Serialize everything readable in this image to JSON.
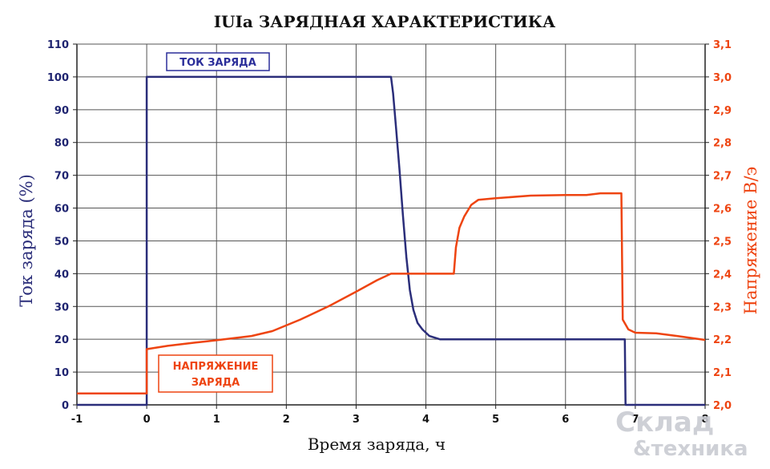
{
  "chart_data": {
    "type": "line",
    "title": "IUIa ЗАРЯДНАЯ ХАРАКТЕРИСТИКА",
    "xlabel": "Время заряда, ч",
    "ylabel_left": "Ток заряда (%)",
    "ylabel_right": "Напряжение В/э",
    "xlim": [
      -1,
      8
    ],
    "ylim_left": [
      0,
      110
    ],
    "ylim_right": [
      2.0,
      3.1
    ],
    "x_ticks": [
      "-1",
      "0",
      "1",
      "2",
      "3",
      "4",
      "5",
      "6",
      "7",
      "8"
    ],
    "y_left_ticks": [
      "0",
      "10",
      "20",
      "30",
      "40",
      "50",
      "60",
      "70",
      "80",
      "90",
      "100",
      "110"
    ],
    "y_right_ticks": [
      "2,0",
      "2,1",
      "2,2",
      "2,3",
      "2,4",
      "2,5",
      "2,6",
      "2,7",
      "2,8",
      "2,9",
      "3,0",
      "3,1"
    ],
    "grid": true,
    "series": [
      {
        "name": "ТОК ЗАРЯДА",
        "axis": "left",
        "color": "#2b2e7a",
        "points": [
          [
            -1,
            0
          ],
          [
            0,
            0
          ],
          [
            0,
            100
          ],
          [
            3.5,
            100
          ],
          [
            3.53,
            95
          ],
          [
            3.57,
            85
          ],
          [
            3.62,
            72
          ],
          [
            3.67,
            58
          ],
          [
            3.72,
            45
          ],
          [
            3.77,
            35
          ],
          [
            3.82,
            29
          ],
          [
            3.88,
            25
          ],
          [
            3.95,
            23
          ],
          [
            4.05,
            21
          ],
          [
            4.2,
            20
          ],
          [
            4.4,
            20
          ],
          [
            6.85,
            20
          ],
          [
            6.86,
            0
          ],
          [
            8,
            0
          ]
        ]
      },
      {
        "name": "НАПРЯЖЕНИЕ ЗАРЯДА",
        "axis": "right",
        "color": "#ee4411",
        "points": [
          [
            -1,
            2.035
          ],
          [
            0,
            2.035
          ],
          [
            0,
            2.17
          ],
          [
            0.3,
            2.18
          ],
          [
            0.7,
            2.19
          ],
          [
            1.0,
            2.197
          ],
          [
            1.5,
            2.21
          ],
          [
            1.8,
            2.225
          ],
          [
            2.2,
            2.26
          ],
          [
            2.6,
            2.3
          ],
          [
            3.0,
            2.345
          ],
          [
            3.3,
            2.38
          ],
          [
            3.5,
            2.4
          ],
          [
            4.4,
            2.4
          ],
          [
            4.43,
            2.48
          ],
          [
            4.48,
            2.54
          ],
          [
            4.55,
            2.575
          ],
          [
            4.65,
            2.61
          ],
          [
            4.75,
            2.625
          ],
          [
            5.0,
            2.63
          ],
          [
            5.5,
            2.638
          ],
          [
            6.0,
            2.64
          ],
          [
            6.3,
            2.64
          ],
          [
            6.5,
            2.645
          ],
          [
            6.8,
            2.645
          ],
          [
            6.82,
            2.26
          ],
          [
            6.9,
            2.23
          ],
          [
            7.0,
            2.22
          ],
          [
            7.3,
            2.218
          ],
          [
            7.6,
            2.21
          ],
          [
            8.0,
            2.198
          ]
        ]
      }
    ],
    "annotations": [
      {
        "text": "ТОК ЗАРЯДА",
        "series": "ТОК ЗАРЯДА"
      },
      {
        "text_lines": [
          "НАПРЯЖЕНИЕ",
          "ЗАРЯДА"
        ],
        "series": "НАПРЯЖЕНИЕ ЗАРЯДА"
      }
    ]
  },
  "watermark": {
    "line1": "Склад",
    "line2": "&техника"
  }
}
